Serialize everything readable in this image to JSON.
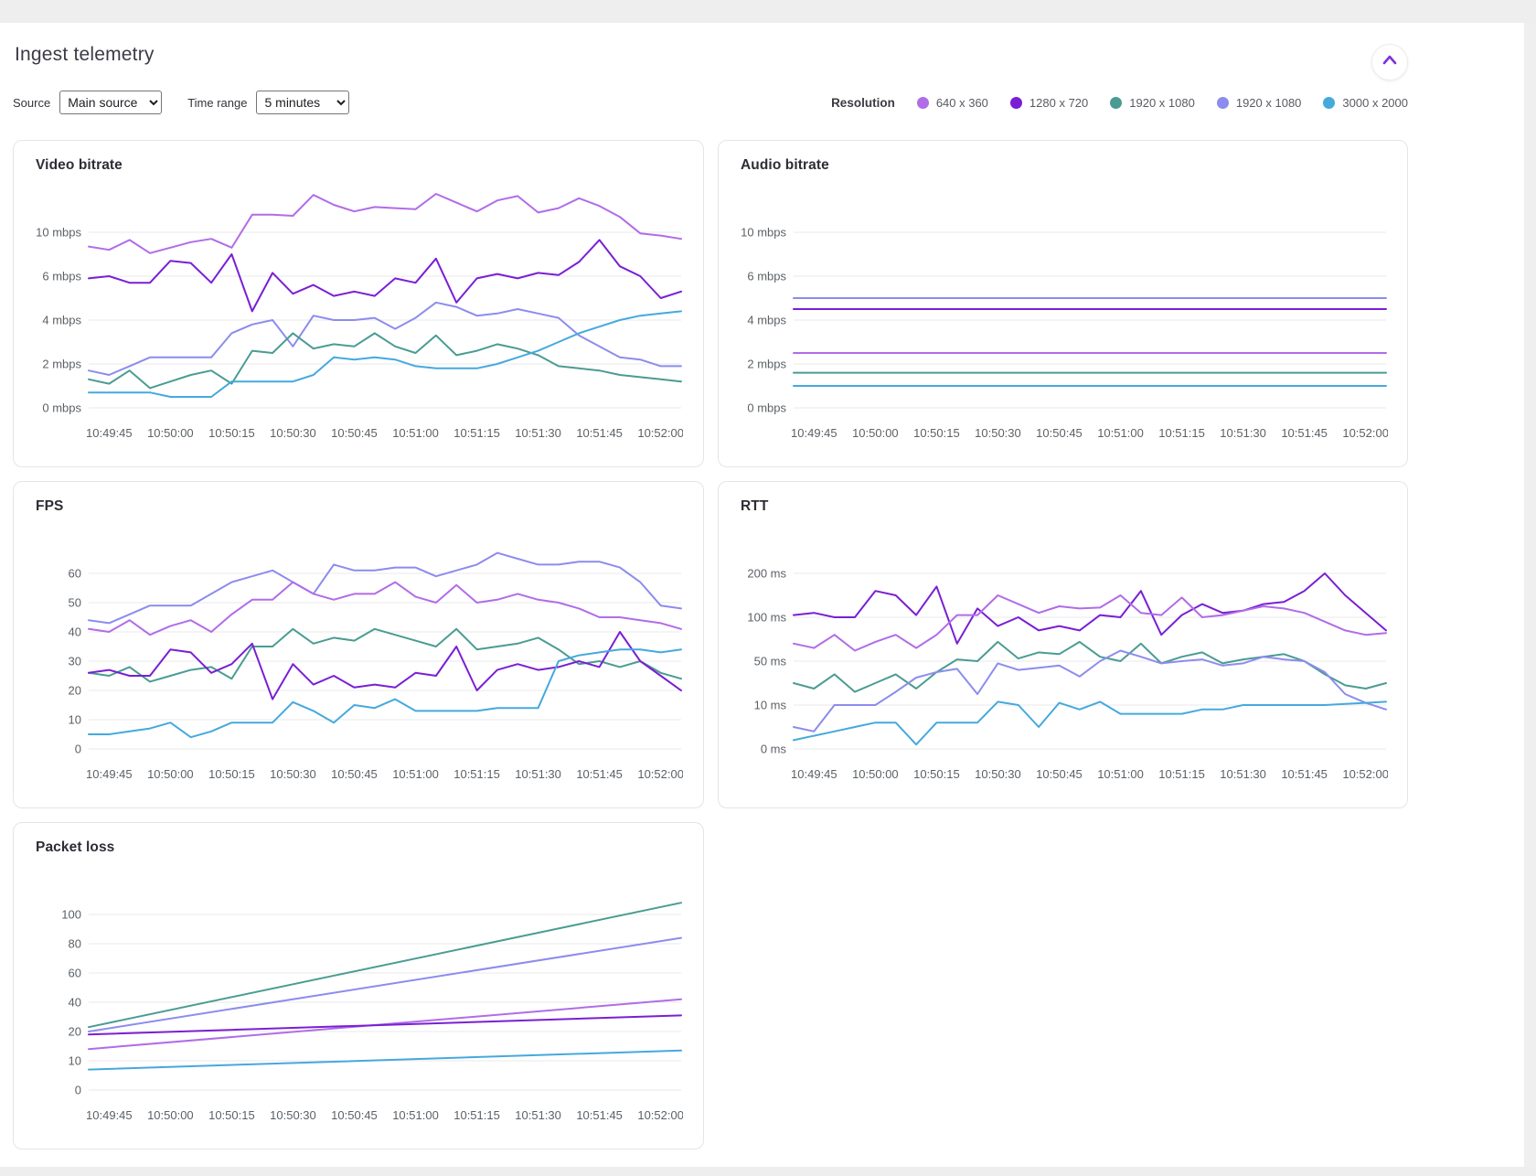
{
  "page": {
    "title": "Ingest telemetry"
  },
  "controls": {
    "source_label": "Source",
    "source_value": "Main source",
    "time_range_label": "Time range",
    "time_range_value": "5 minutes"
  },
  "legend": {
    "label": "Resolution",
    "items": [
      {
        "label": "640 x 360",
        "color": "#b16ce8"
      },
      {
        "label": "1280 x 720",
        "color": "#7a1fd4"
      },
      {
        "label": "1920 x 1080",
        "color": "#4a9c92"
      },
      {
        "label": "1920 x 1080",
        "color": "#8c8cee"
      },
      {
        "label": "3000 x 2000",
        "color": "#45a9dd"
      }
    ]
  },
  "icons": {
    "collapse": "chevron-up"
  },
  "chart_data": [
    {
      "type": "line",
      "title": "Video bitrate",
      "ylabel": "mbps",
      "yticks": [
        {
          "v": 0,
          "l": "0 mbps"
        },
        {
          "v": 2,
          "l": "2 mbps"
        },
        {
          "v": 4,
          "l": "4 mbps"
        },
        {
          "v": 6,
          "l": "6 mbps"
        },
        {
          "v": 10,
          "l": "10 mbps"
        }
      ],
      "xticks": [
        "10:49:45",
        "10:50:00",
        "10:50:15",
        "10:50:30",
        "10:50:45",
        "10:51:00",
        "10:51:15",
        "10:51:30",
        "10:51:45",
        "10:52:00"
      ],
      "series": [
        {
          "legend": 0,
          "name": "640 x 360",
          "values": [
            8.7,
            8.4,
            9.3,
            8.1,
            8.6,
            9.1,
            9.4,
            8.6,
            11.6,
            11.6,
            11.5,
            13.4,
            12.5,
            11.9,
            12.3,
            12.2,
            12.1,
            13.5,
            12.7,
            11.9,
            12.9,
            13.3,
            11.8,
            12.2,
            13.1,
            12.4,
            11.4,
            9.9,
            9.7,
            9.4
          ]
        },
        {
          "legend": 1,
          "name": "1280 x 720",
          "values": [
            5.9,
            6.0,
            5.7,
            5.7,
            7.4,
            7.2,
            5.7,
            8.0,
            4.4,
            6.3,
            5.2,
            5.6,
            5.1,
            5.3,
            5.1,
            5.9,
            5.7,
            7.6,
            4.8,
            5.9,
            6.2,
            5.9,
            6.3,
            6.1,
            7.3,
            9.3,
            6.9,
            6.0,
            5.0,
            5.3
          ]
        },
        {
          "legend": 3,
          "name": "1920 x 1080",
          "values": [
            1.7,
            1.5,
            1.9,
            2.3,
            2.3,
            2.3,
            2.3,
            3.4,
            3.8,
            4.0,
            2.8,
            4.2,
            4.0,
            4.0,
            4.1,
            3.6,
            4.1,
            4.8,
            4.6,
            4.2,
            4.3,
            4.5,
            4.3,
            4.1,
            3.3,
            2.8,
            2.3,
            2.2,
            1.9,
            1.9
          ]
        },
        {
          "legend": 2,
          "name": "1920 x 1080",
          "values": [
            1.3,
            1.1,
            1.7,
            0.9,
            1.2,
            1.5,
            1.7,
            1.1,
            2.6,
            2.5,
            3.4,
            2.7,
            2.9,
            2.8,
            3.4,
            2.8,
            2.5,
            3.3,
            2.4,
            2.6,
            2.9,
            2.7,
            2.4,
            1.9,
            1.8,
            1.7,
            1.5,
            1.4,
            1.3,
            1.2
          ]
        },
        {
          "legend": 4,
          "name": "3000 x 2000",
          "values": [
            0.7,
            0.7,
            0.7,
            0.7,
            0.5,
            0.5,
            0.5,
            1.2,
            1.2,
            1.2,
            1.2,
            1.5,
            2.3,
            2.2,
            2.3,
            2.2,
            1.9,
            1.8,
            1.8,
            1.8,
            2.0,
            2.3,
            2.6,
            3.0,
            3.4,
            3.7,
            4.0,
            4.2,
            4.3,
            4.4
          ]
        }
      ]
    },
    {
      "type": "line",
      "title": "Audio bitrate",
      "ylabel": "mbps",
      "yticks": [
        {
          "v": 0,
          "l": "0 mbps"
        },
        {
          "v": 2,
          "l": "2 mbps"
        },
        {
          "v": 4,
          "l": "4 mbps"
        },
        {
          "v": 6,
          "l": "6 mbps"
        },
        {
          "v": 10,
          "l": "10 mbps"
        }
      ],
      "xticks": [
        "10:49:45",
        "10:50:00",
        "10:50:15",
        "10:50:30",
        "10:50:45",
        "10:51:00",
        "10:51:15",
        "10:51:30",
        "10:51:45",
        "10:52:00"
      ],
      "series": [
        {
          "legend": 3,
          "name": "1920 x 1080",
          "values": [
            5.0,
            5.0
          ]
        },
        {
          "legend": 1,
          "name": "1280 x 720",
          "values": [
            4.5,
            4.5
          ]
        },
        {
          "legend": 0,
          "name": "640 x 360",
          "values": [
            2.5,
            2.5
          ]
        },
        {
          "legend": 2,
          "name": "1920 x 1080",
          "values": [
            1.6,
            1.6
          ]
        },
        {
          "legend": 4,
          "name": "3000 x 2000",
          "values": [
            1.0,
            1.0
          ]
        }
      ]
    },
    {
      "type": "line",
      "title": "FPS",
      "ylabel": "fps",
      "yticks": [
        {
          "v": 0,
          "l": "0"
        },
        {
          "v": 10,
          "l": "10"
        },
        {
          "v": 20,
          "l": "20"
        },
        {
          "v": 30,
          "l": "30"
        },
        {
          "v": 40,
          "l": "40"
        },
        {
          "v": 50,
          "l": "50"
        },
        {
          "v": 60,
          "l": "60"
        }
      ],
      "xticks": [
        "10:49:45",
        "10:50:00",
        "10:50:15",
        "10:50:30",
        "10:50:45",
        "10:51:00",
        "10:51:15",
        "10:51:30",
        "10:51:45",
        "10:52:00"
      ],
      "series": [
        {
          "legend": 3,
          "name": "1920 x 1080",
          "values": [
            44,
            43,
            46,
            49,
            49,
            49,
            53,
            57,
            59,
            61,
            57,
            53,
            63,
            61,
            61,
            62,
            62,
            59,
            61,
            63,
            67,
            65,
            63,
            63,
            64,
            64,
            62,
            57,
            49,
            48
          ]
        },
        {
          "legend": 0,
          "name": "640 x 360",
          "values": [
            41,
            40,
            44,
            39,
            42,
            44,
            40,
            46,
            51,
            51,
            57,
            53,
            51,
            53,
            53,
            57,
            52,
            50,
            56,
            50,
            51,
            53,
            51,
            50,
            48,
            45,
            45,
            44,
            43,
            41
          ]
        },
        {
          "legend": 2,
          "name": "1920 x 1080",
          "values": [
            26,
            25,
            28,
            23,
            25,
            27,
            28,
            24,
            35,
            35,
            41,
            36,
            38,
            37,
            41,
            39,
            37,
            35,
            41,
            34,
            35,
            36,
            38,
            34,
            29,
            30,
            28,
            30,
            26,
            24
          ]
        },
        {
          "legend": 1,
          "name": "1280 x 720",
          "values": [
            26,
            27,
            25,
            25,
            34,
            33,
            26,
            29,
            36,
            17,
            29,
            22,
            25,
            21,
            22,
            21,
            26,
            25,
            35,
            20,
            27,
            29,
            27,
            28,
            30,
            28,
            40,
            30,
            25,
            20
          ]
        },
        {
          "legend": 4,
          "name": "3000 x 2000",
          "values": [
            5,
            5,
            6,
            7,
            9,
            4,
            6,
            9,
            9,
            9,
            16,
            13,
            9,
            15,
            14,
            17,
            13,
            13,
            13,
            13,
            14,
            14,
            14,
            30,
            32,
            33,
            34,
            34,
            33,
            34
          ]
        }
      ]
    },
    {
      "type": "line",
      "title": "RTT",
      "ylabel": "ms",
      "yticks": [
        {
          "v": 0,
          "l": "0 ms"
        },
        {
          "v": 10,
          "l": "10 ms"
        },
        {
          "v": 50,
          "l": "50 ms"
        },
        {
          "v": 100,
          "l": "100 ms"
        },
        {
          "v": 200,
          "l": "200 ms"
        }
      ],
      "xticks": [
        "10:49:45",
        "10:50:00",
        "10:50:15",
        "10:50:30",
        "10:50:45",
        "10:51:00",
        "10:51:15",
        "10:51:30",
        "10:51:45",
        "10:52:00"
      ],
      "series": [
        {
          "legend": 1,
          "name": "1280 x 720",
          "values": [
            105,
            110,
            100,
            100,
            160,
            150,
            105,
            170,
            70,
            120,
            90,
            100,
            85,
            90,
            85,
            105,
            100,
            160,
            80,
            105,
            130,
            110,
            115,
            130,
            135,
            160,
            200,
            150,
            110,
            85
          ]
        },
        {
          "legend": 0,
          "name": "640 x 360",
          "values": [
            70,
            65,
            80,
            62,
            72,
            80,
            65,
            80,
            105,
            105,
            150,
            130,
            110,
            125,
            120,
            122,
            150,
            110,
            105,
            145,
            100,
            105,
            115,
            125,
            120,
            110,
            95,
            85,
            80,
            82
          ]
        },
        {
          "legend": 2,
          "name": "1920 x 1080",
          "values": [
            30,
            25,
            38,
            22,
            30,
            38,
            25,
            40,
            52,
            50,
            72,
            53,
            60,
            58,
            72,
            55,
            50,
            70,
            48,
            55,
            60,
            48,
            52,
            55,
            58,
            50,
            38,
            28,
            25,
            30
          ]
        },
        {
          "legend": 3,
          "name": "1920 x 1080",
          "values": [
            5,
            4,
            10,
            10,
            10,
            22,
            35,
            40,
            43,
            20,
            48,
            42,
            44,
            46,
            36,
            50,
            62,
            55,
            48,
            50,
            52,
            46,
            48,
            55,
            52,
            50,
            40,
            20,
            12,
            9
          ]
        },
        {
          "legend": 4,
          "name": "3000 x 2000",
          "values": [
            2,
            3,
            4,
            5,
            6,
            6,
            1,
            6,
            6,
            6,
            13,
            10,
            5,
            12,
            9,
            13,
            8,
            8,
            8,
            8,
            9,
            9,
            10,
            10,
            10,
            10,
            10,
            11,
            12,
            13
          ]
        }
      ]
    },
    {
      "type": "line",
      "title": "Packet loss",
      "ylabel": "",
      "yticks": [
        {
          "v": 0,
          "l": "0"
        },
        {
          "v": 10,
          "l": "10"
        },
        {
          "v": 20,
          "l": "20"
        },
        {
          "v": 40,
          "l": "40"
        },
        {
          "v": 60,
          "l": "60"
        },
        {
          "v": 80,
          "l": "80"
        },
        {
          "v": 100,
          "l": "100"
        }
      ],
      "xticks": [
        "10:49:45",
        "10:50:00",
        "10:50:15",
        "10:50:30",
        "10:50:45",
        "10:51:00",
        "10:51:15",
        "10:51:30",
        "10:51:45",
        "10:52:00"
      ],
      "series": [
        {
          "legend": 2,
          "name": "1920 x 1080",
          "values": [
            23,
            108
          ]
        },
        {
          "legend": 3,
          "name": "1920 x 1080",
          "values": [
            20,
            84
          ]
        },
        {
          "legend": 0,
          "name": "640 x 360",
          "values": [
            14,
            42
          ]
        },
        {
          "legend": 1,
          "name": "1280 x 720",
          "values": [
            19,
            31
          ]
        },
        {
          "legend": 4,
          "name": "3000 x 2000",
          "values": [
            7,
            13.5
          ]
        }
      ]
    }
  ]
}
